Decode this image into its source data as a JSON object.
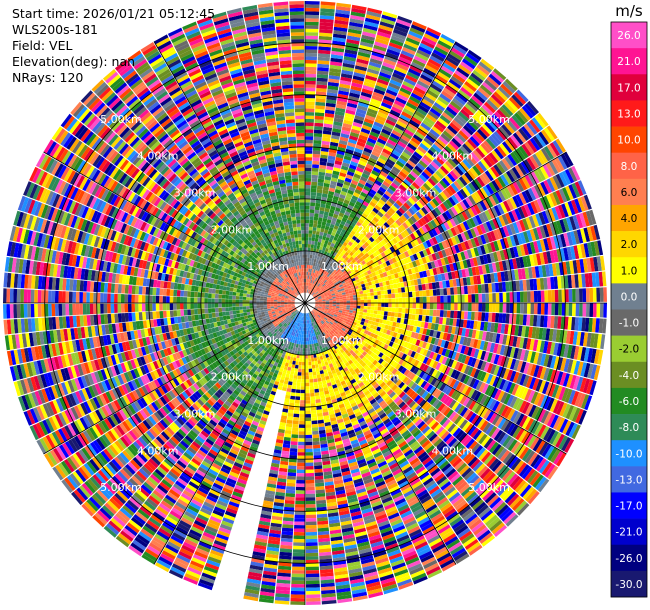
{
  "header": {
    "start_time": "Start time: 2026/01/21 05:12:45",
    "station": "WLS200s-181",
    "field": "Field: VEL",
    "elevation": "Elevation(deg): nan",
    "nrays": "NRays: 120"
  },
  "chart_data": {
    "type": "heatmap",
    "projection": "polar-ppi",
    "field": "VEL",
    "unit": "m/s",
    "n_rays": 120,
    "range_rings_km": [
      1,
      2,
      3,
      4,
      5
    ],
    "ring_labels": [
      "1.00km",
      "2.00km",
      "3.00km",
      "4.00km",
      "5.00km"
    ],
    "max_range_km": 5.8,
    "colorbar": {
      "ticks": [
        "26.0",
        "21.0",
        "17.0",
        "13.0",
        "10.0",
        "8.0",
        "6.0",
        "4.0",
        "2.0",
        "1.0",
        "0.0",
        "-1.0",
        "-2.0",
        "-4.0",
        "-6.0",
        "-8.0",
        "-10.0",
        "-13.0",
        "-17.0",
        "-21.0",
        "-26.0",
        "-30.0"
      ],
      "colors": [
        "#ff4fc8",
        "#ff1493",
        "#e0003c",
        "#ff1a1a",
        "#ff4500",
        "#ff6347",
        "#ff7f50",
        "#ffa500",
        "#ffd700",
        "#ffff00",
        "#708090",
        "#696969",
        "#9acd32",
        "#6b8e23",
        "#228b22",
        "#2e8b57",
        "#1e90ff",
        "#4169e1",
        "#0000ff",
        "#0000cd",
        "#000080",
        "#191970"
      ]
    }
  }
}
